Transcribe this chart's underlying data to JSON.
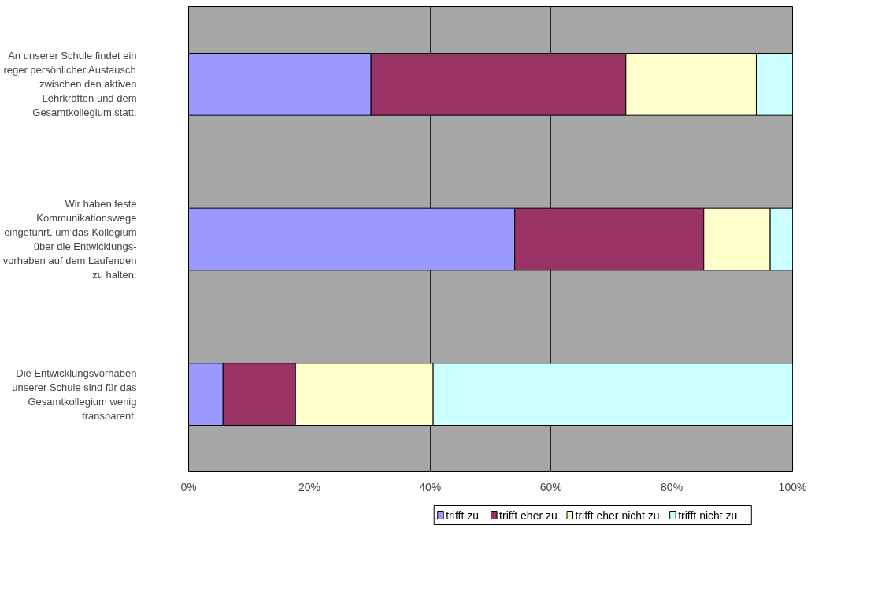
{
  "chart_data": {
    "type": "bar",
    "orientation": "horizontal",
    "stacked": true,
    "categories": [
      "An unserer Schule findet ein reger persönlicher Austausch zwischen den aktiven Lehrkräften und dem Gesamtkollegium statt.",
      "Wir haben feste Kommunikationswege eingeführt, um das Kollegium über die Entwicklungs-vorhaben auf dem Laufenden zu halten.",
      "Die Entwicklungsvorhaben unserer Schule sind für das Gesamtkollegium wenig transparent."
    ],
    "series": [
      {
        "name": "trifft zu",
        "color": "#9999ff",
        "values": [
          30.2,
          54.0,
          5.7
        ]
      },
      {
        "name": "trifft eher zu",
        "color": "#993366",
        "values": [
          42.2,
          31.3,
          12.0
        ]
      },
      {
        "name": "trifft eher nicht zu",
        "color": "#ffffcc",
        "values": [
          21.6,
          11.0,
          22.8
        ]
      },
      {
        "name": "trifft nicht zu",
        "color": "#ccffff",
        "values": [
          6.0,
          3.7,
          59.5
        ]
      }
    ],
    "xlim": [
      0,
      100
    ],
    "xticks": [
      {
        "value": 0,
        "label": "0%"
      },
      {
        "value": 20,
        "label": "20%"
      },
      {
        "value": 40,
        "label": "40%"
      },
      {
        "value": 60,
        "label": "60%"
      },
      {
        "value": 80,
        "label": "80%"
      },
      {
        "value": 100,
        "label": "100%"
      }
    ],
    "grid": "x",
    "legend": "bottom"
  }
}
